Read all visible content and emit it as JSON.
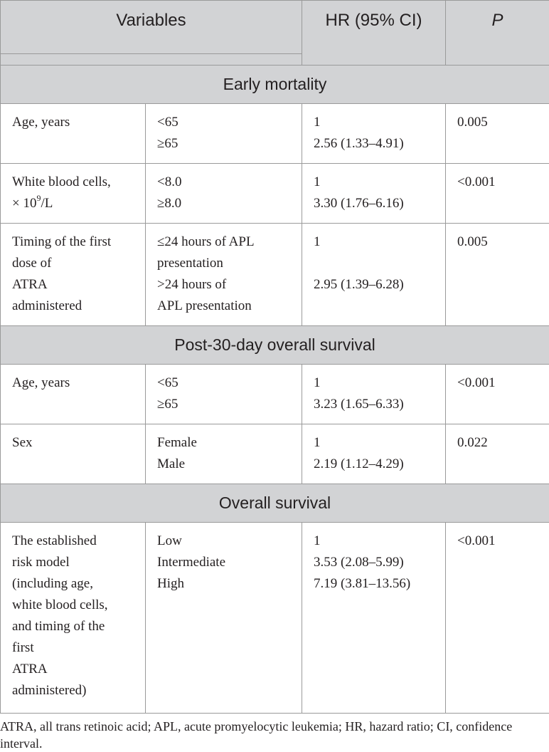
{
  "table": {
    "headers": {
      "variables": "Variables",
      "hr": "HR (95% CI)",
      "p": "P"
    },
    "sections": [
      {
        "title": "Early mortality",
        "rows": [
          {
            "variable": [
              "Age, years"
            ],
            "levels": [
              "<65",
              "≥65"
            ],
            "hr": [
              "1",
              "2.56 (1.33–4.91)"
            ],
            "p": "0.005"
          },
          {
            "variable_wbc": {
              "line1": "White blood cells,",
              "line2_prefix": "× 10",
              "sup": "9",
              "line2_suffix": "/L"
            },
            "levels": [
              "<8.0",
              "≥8.0"
            ],
            "hr": [
              "1",
              "3.30 (1.76–6.16)"
            ],
            "p": "<0.001"
          },
          {
            "variable": [
              "Timing of the first",
              "dose of",
              "ATRA",
              "administered"
            ],
            "levels": [
              "≤24 hours of APL",
              "presentation",
              ">24 hours of",
              "APL presentation"
            ],
            "hr": [
              "1",
              "2.95 (1.39–6.28)"
            ],
            "p": "0.005"
          }
        ]
      },
      {
        "title": "Post-30-day overall survival",
        "rows": [
          {
            "variable": [
              "Age, years"
            ],
            "levels": [
              "<65",
              "≥65"
            ],
            "hr": [
              "1",
              "3.23 (1.65–6.33)"
            ],
            "p": "<0.001"
          },
          {
            "variable": [
              "Sex"
            ],
            "levels": [
              "Female",
              "Male"
            ],
            "hr": [
              "1",
              "2.19 (1.12–4.29)"
            ],
            "p": "0.022"
          }
        ]
      },
      {
        "title": "Overall survival",
        "rows": [
          {
            "variable": [
              "The established",
              "risk model",
              "(including age,",
              "white blood cells,",
              "and timing of the",
              "first",
              "ATRA",
              "administered)"
            ],
            "levels": [
              "Low",
              "Intermediate",
              "High"
            ],
            "hr": [
              "1",
              "3.53 (2.08–5.99)",
              "7.19 (3.81–13.56)"
            ],
            "p": "<0.001"
          }
        ]
      }
    ],
    "footnote": "ATRA, all trans retinoic acid; APL, acute promyelocytic leukemia; HR, hazard ratio; CI, confidence interval."
  }
}
